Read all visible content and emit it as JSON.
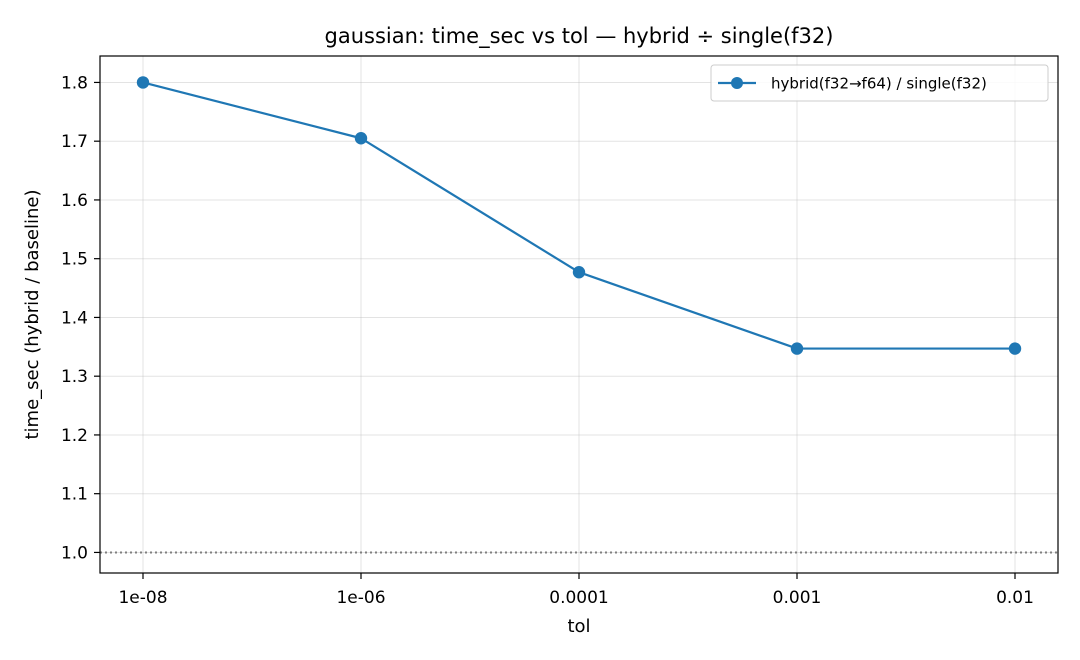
{
  "chart_data": {
    "type": "line",
    "title": "gaussian: time_sec vs tol — hybrid ÷ single(f32)",
    "xlabel": "tol",
    "ylabel": "time_sec (hybrid / baseline)",
    "categories": [
      "1e-08",
      "1e-06",
      "0.0001",
      "0.001",
      "0.01"
    ],
    "series": [
      {
        "name": "hybrid(f32→f64) / single(f32)",
        "values": [
          1.8,
          1.705,
          1.477,
          1.347,
          1.347
        ],
        "color": "#1f77b4",
        "marker": "circle"
      }
    ],
    "ylim": [
      0.965,
      1.845
    ],
    "yticks": [
      1.0,
      1.1,
      1.2,
      1.3,
      1.4,
      1.5,
      1.6,
      1.7,
      1.8
    ],
    "ytick_labels": [
      "1.0",
      "1.1",
      "1.2",
      "1.3",
      "1.4",
      "1.5",
      "1.6",
      "1.7",
      "1.8"
    ],
    "reference_line": {
      "y": 1.0,
      "style": "dotted",
      "color": "#808080"
    },
    "grid": true,
    "legend_position": "top-right"
  }
}
